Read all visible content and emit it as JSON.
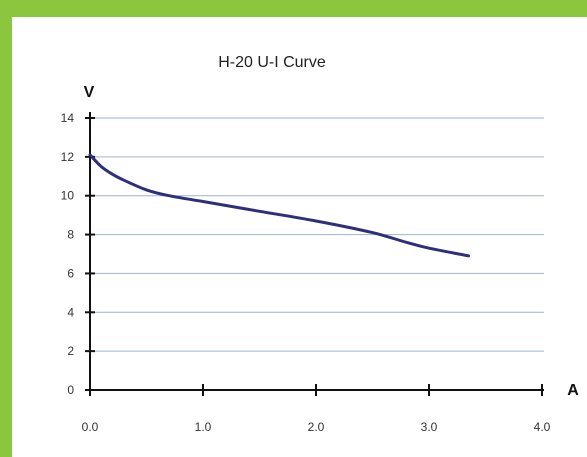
{
  "chart_data": {
    "type": "line",
    "title": "H-20 U-I Curve",
    "ylabel": "V",
    "xlabel": "A",
    "xlim": [
      0,
      4
    ],
    "ylim": [
      0,
      14
    ],
    "x_ticks": [
      "0.0",
      "1.0",
      "2.0",
      "3.0",
      "4.0"
    ],
    "y_ticks": [
      "0",
      "2",
      "4",
      "6",
      "8",
      "10",
      "12",
      "14"
    ],
    "grid": true,
    "series": [
      {
        "color": "#2e2f7a",
        "x": [
          0.0,
          0.1,
          0.2,
          0.3,
          0.5,
          0.7,
          1.0,
          1.5,
          2.0,
          2.5,
          2.8,
          3.0,
          3.35
        ],
        "values": [
          12.1,
          11.5,
          11.1,
          10.8,
          10.3,
          10.0,
          9.7,
          9.2,
          8.7,
          8.1,
          7.6,
          7.3,
          6.9
        ]
      }
    ]
  }
}
